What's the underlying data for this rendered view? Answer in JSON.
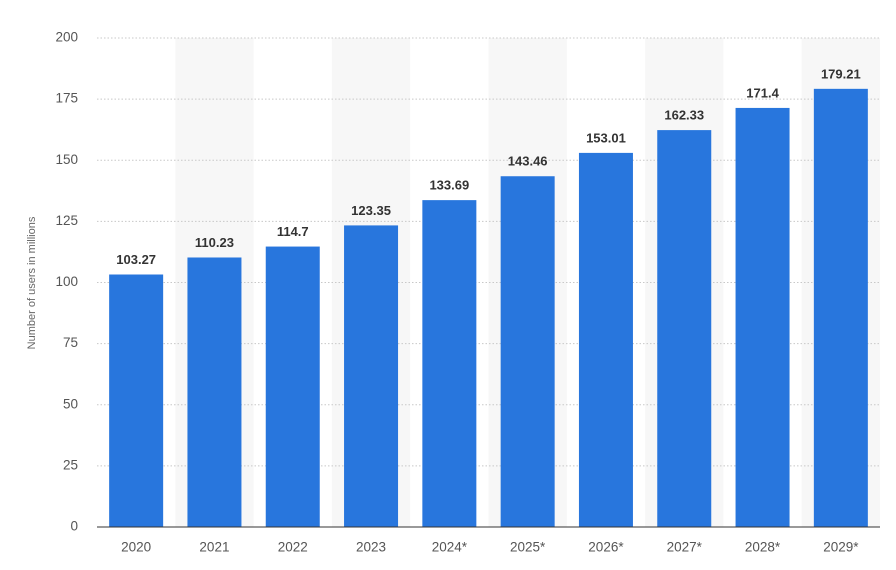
{
  "chart_data": {
    "type": "bar",
    "y_label": "Number of users in millions",
    "categories": [
      "2020",
      "2021",
      "2022",
      "2023",
      "2024*",
      "2025*",
      "2026*",
      "2027*",
      "2028*",
      "2029*"
    ],
    "values": [
      103.27,
      110.23,
      114.7,
      123.35,
      133.69,
      143.46,
      153.01,
      162.33,
      171.4,
      179.21
    ],
    "color": "#2876dd",
    "ylim": [
      0,
      200
    ],
    "yticks": [
      0,
      25,
      50,
      75,
      100,
      125,
      150,
      175,
      200
    ],
    "grid": true
  }
}
